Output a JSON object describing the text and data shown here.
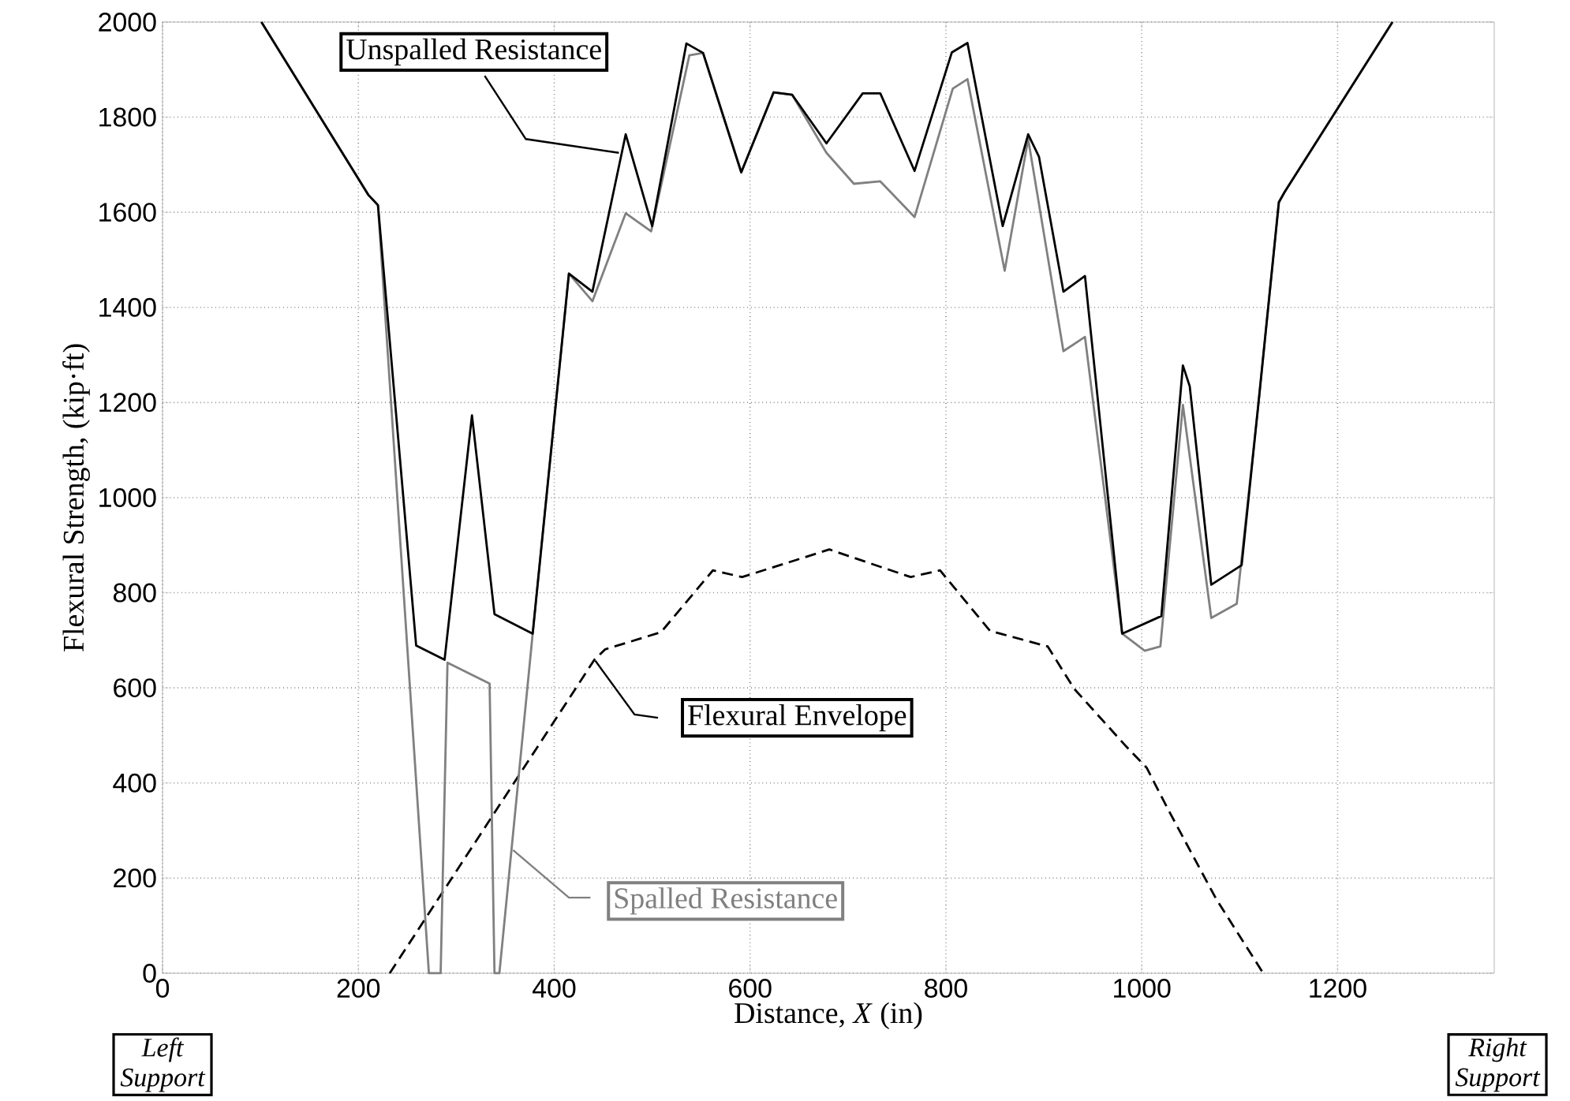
{
  "chart_data": {
    "type": "line",
    "xlabel": "Distance, *X* (in)",
    "ylabel": "Flexural Strength, (kip·ft)",
    "xlim": [
      0,
      1360
    ],
    "ylim": [
      0,
      2000
    ],
    "xticks": [
      0,
      200,
      400,
      600,
      800,
      1000,
      1200
    ],
    "yticks": [
      0,
      200,
      400,
      600,
      800,
      1000,
      1200,
      1400,
      1600,
      1800,
      2000
    ],
    "grid": true,
    "series": [
      {
        "name": "Unspalled Resistance",
        "color": "#000000",
        "line_style": "solid",
        "x": [
          101,
          210,
          220,
          259,
          288,
          316,
          339,
          378,
          415,
          439,
          473,
          500,
          535,
          552,
          591,
          624,
          643,
          678,
          715,
          733,
          768,
          806,
          822,
          858,
          884,
          895,
          920,
          942,
          980,
          1020,
          1042,
          1049,
          1071,
          1102,
          1119,
          1140,
          1146,
          1256
        ],
        "values": [
          2000,
          1637,
          1615,
          689,
          659,
          1173,
          755,
          714,
          1471,
          1433,
          1764,
          1571,
          1955,
          1935,
          1684,
          1852,
          1847,
          1745,
          1850,
          1850,
          1687,
          1936,
          1956,
          1571,
          1764,
          1717,
          1433,
          1466,
          714,
          751,
          1278,
          1234,
          817,
          858,
          1195,
          1621,
          1643,
          2000
        ]
      },
      {
        "name": "Spalled Resistance",
        "color": "#808080",
        "line_style": "solid",
        "x": [
          101,
          210,
          220,
          272,
          284,
          291,
          334,
          339,
          344,
          378,
          415,
          439,
          473,
          499,
          538,
          552,
          591,
          624,
          643,
          678,
          706,
          733,
          768,
          807,
          822,
          860,
          884,
          920,
          942,
          980,
          1003,
          1019,
          1042,
          1071,
          1097,
          1119,
          1140,
          1146,
          1256
        ],
        "values": [
          2000,
          1637,
          1615,
          0,
          0,
          653,
          609,
          0,
          0,
          714,
          1471,
          1413,
          1598,
          1560,
          1930,
          1935,
          1684,
          1852,
          1847,
          1725,
          1660,
          1665,
          1590,
          1860,
          1880,
          1477,
          1754,
          1308,
          1338,
          714,
          678,
          687,
          1195,
          747,
          777,
          1195,
          1621,
          1643,
          2000
        ]
      },
      {
        "name": "Flexural Envelope",
        "color": "#000000",
        "line_style": "dashed",
        "x": [
          232,
          441,
          452,
          509,
          562,
          592,
          681,
          764,
          794,
          845,
          904,
          931,
          984,
          1005,
          1027,
          1076,
          1124
        ],
        "values": [
          0,
          659,
          681,
          717,
          847,
          833,
          891,
          833,
          847,
          720,
          687,
          598,
          477,
          432,
          344,
          156,
          0
        ]
      }
    ],
    "annotations": [
      "Left Support",
      "Right Support"
    ]
  }
}
